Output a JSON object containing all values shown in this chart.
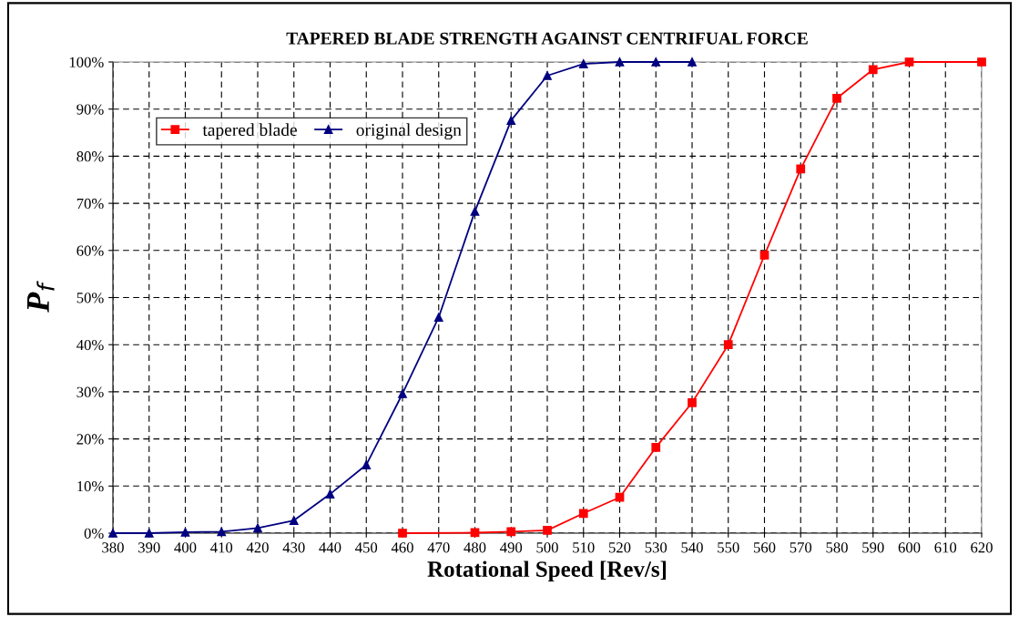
{
  "chart_data": {
    "type": "line",
    "title": "TAPERED BLADE STRENGTH AGAINST CENTRIFUAL FORCE",
    "xlabel": "Rotational Speed [Rev/s]",
    "ylabel": "P$_{f}$",
    "series": [
      {
        "name": "tapered blade",
        "color": "#ff0000",
        "marker": "square",
        "x": [
          460,
          480,
          490,
          500,
          510,
          520,
          530,
          540,
          550,
          560,
          570,
          580,
          590,
          600,
          620
        ],
        "values": [
          0,
          0.1,
          0.3,
          0.6,
          4.2,
          7.6,
          18.2,
          27.7,
          40,
          59,
          77.3,
          92.3,
          98.4,
          100,
          100
        ]
      },
      {
        "name": "original design",
        "color": "#000080",
        "marker": "triangle",
        "x": [
          380,
          390,
          400,
          410,
          420,
          430,
          440,
          450,
          460,
          470,
          480,
          490,
          500,
          510,
          520,
          530,
          540
        ],
        "values": [
          0,
          0,
          0.2,
          0.3,
          1.1,
          2.7,
          8.3,
          14.5,
          29.6,
          45.8,
          68.3,
          87.6,
          97.1,
          99.6,
          100,
          100,
          100
        ]
      }
    ],
    "xlim": [
      380,
      620
    ],
    "xticks": [
      380,
      390,
      400,
      410,
      420,
      430,
      440,
      450,
      460,
      470,
      480,
      490,
      500,
      510,
      520,
      530,
      540,
      550,
      560,
      570,
      580,
      590,
      600,
      610,
      620
    ],
    "ylim": [
      0,
      100
    ],
    "yticks": [
      {
        "value": 0,
        "label": "0%"
      },
      {
        "value": 10,
        "label": "10%"
      },
      {
        "value": 20,
        "label": "20%"
      },
      {
        "value": 30,
        "label": "30%"
      },
      {
        "value": 40,
        "label": "40%"
      },
      {
        "value": 50,
        "label": "50%"
      },
      {
        "value": 60,
        "label": "60%"
      },
      {
        "value": 70,
        "label": "70%"
      },
      {
        "value": 80,
        "label": "80%"
      },
      {
        "value": 90,
        "label": "90%"
      },
      {
        "value": 100,
        "label": "100%"
      }
    ],
    "grid": true,
    "legend": "top left",
    "line_style": "solid"
  }
}
